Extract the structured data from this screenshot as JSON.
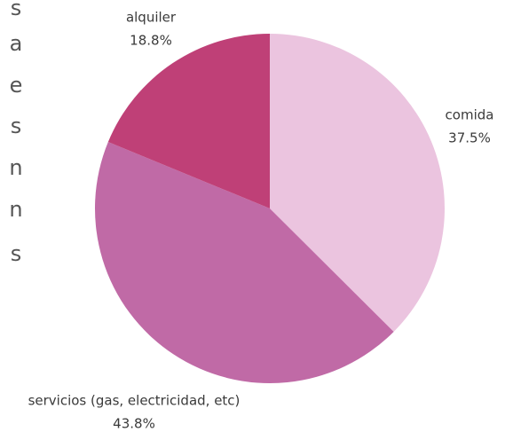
{
  "side_text": [
    "s",
    "a",
    "e",
    "s",
    "n",
    "n",
    "s"
  ],
  "chart_data": {
    "type": "pie",
    "categories": [
      "comida",
      "servicios (gas, electricidad, etc)",
      "alquiler"
    ],
    "values": [
      37.5,
      43.8,
      18.8
    ],
    "value_labels": [
      "37.5%",
      "43.8%",
      "18.8%"
    ],
    "colors": [
      "#ebc4df",
      "#c06aa6",
      "#bf4077"
    ]
  }
}
